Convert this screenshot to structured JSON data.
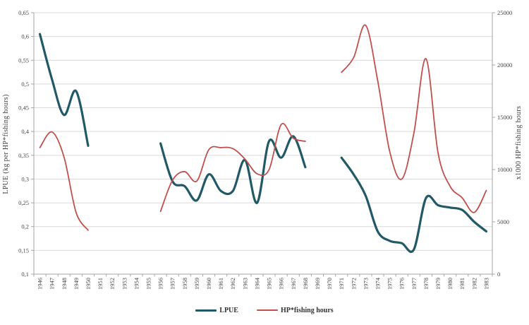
{
  "chart_data": {
    "type": "line",
    "title": "",
    "x": [
      "1946",
      "1947",
      "1948",
      "1949",
      "1950",
      "1951",
      "1952",
      "1953",
      "1954",
      "1955",
      "1956",
      "1957",
      "1958",
      "1959",
      "1960",
      "1961",
      "1962",
      "1963",
      "1964",
      "1965",
      "1966",
      "1967",
      "1968",
      "1969",
      "1970",
      "1971",
      "1972",
      "1973",
      "1974",
      "1975",
      "1976",
      "1977",
      "1978",
      "1979",
      "1980",
      "1981",
      "1982",
      "1983"
    ],
    "series": [
      {
        "name": "LPUE",
        "axis": "left",
        "color": "#215967",
        "stroke_width": 3.2,
        "values": [
          0.605,
          0.51,
          0.435,
          0.485,
          0.37,
          null,
          null,
          null,
          null,
          null,
          0.375,
          0.295,
          0.285,
          0.255,
          0.31,
          0.275,
          0.275,
          0.34,
          0.25,
          0.38,
          0.345,
          0.39,
          0.325,
          null,
          null,
          0.345,
          0.31,
          0.265,
          0.19,
          0.17,
          0.165,
          0.152,
          0.26,
          0.245,
          0.24,
          0.235,
          0.21,
          0.19
        ]
      },
      {
        "name": "HP*fishing hours",
        "axis": "right",
        "color": "#C0504D",
        "stroke_width": 1.8,
        "values": [
          12100,
          13600,
          11200,
          5900,
          4200,
          null,
          null,
          null,
          null,
          null,
          6000,
          9000,
          9800,
          8900,
          11900,
          12100,
          12000,
          11000,
          9600,
          10000,
          14300,
          13000,
          12700,
          null,
          null,
          19300,
          20700,
          23800,
          18500,
          11700,
          9100,
          13500,
          20600,
          11600,
          8400,
          7300,
          5900,
          8000
        ]
      }
    ],
    "left_axis": {
      "label": "LPUE (kg per HP*fishing hours)",
      "min": 0.1,
      "max": 0.65,
      "step": 0.05,
      "tick_labels": [
        "0,1",
        "0,15",
        "0,2",
        "0,25",
        "0,3",
        "0,35",
        "0,4",
        "0,45",
        "0,5",
        "0,55",
        "0,6",
        "0,65"
      ]
    },
    "right_axis": {
      "label": "x1000 HP*fishing hours",
      "min": 0,
      "max": 25000,
      "step": 5000,
      "tick_labels": [
        "0",
        "5000",
        "10000",
        "15000",
        "20000",
        "25000"
      ]
    },
    "legend": {
      "position": "bottom"
    },
    "grid": true,
    "smooth_lines": true,
    "colors": {
      "gridline": "#d9d9d9",
      "axis": "#a6a6a6",
      "text": "#404040",
      "background": "#ffffff"
    }
  }
}
